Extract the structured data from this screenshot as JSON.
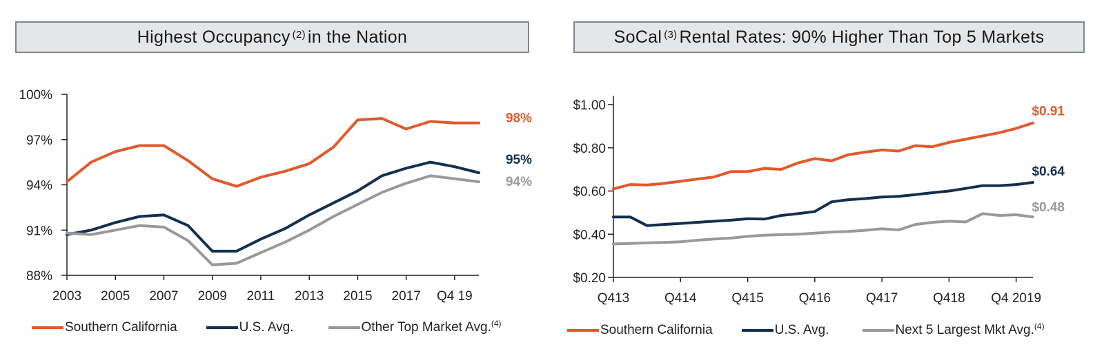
{
  "chart_data": [
    {
      "type": "line",
      "title": "Highest Occupancy",
      "title_note": "2",
      "title_suffix": "in the Nation",
      "x_ticks": [
        "2003",
        "2005",
        "2007",
        "2009",
        "2011",
        "2013",
        "2015",
        "2017",
        "Q4 19"
      ],
      "x": [
        2003,
        2004,
        2005,
        2006,
        2007,
        2008,
        2009,
        2010,
        2011,
        2012,
        2013,
        2014,
        2015,
        2016,
        2017,
        2018,
        2019,
        2020
      ],
      "ylim": [
        88,
        100
      ],
      "y_ticks": [
        "88%",
        "91%",
        "94%",
        "97%",
        "100%"
      ],
      "series": [
        {
          "name": "Southern California",
          "color": "#e05a2b",
          "end_label": "98%",
          "values": [
            94.2,
            95.5,
            96.2,
            96.6,
            96.6,
            95.6,
            94.4,
            93.9,
            94.5,
            94.9,
            95.4,
            96.5,
            98.3,
            98.4,
            97.7,
            98.2,
            98.1,
            98.1
          ]
        },
        {
          "name": "U.S. Avg.",
          "color": "#14304f",
          "end_label": "95%",
          "values": [
            90.7,
            91.0,
            91.5,
            91.9,
            92.0,
            91.3,
            89.6,
            89.6,
            90.4,
            91.1,
            92.0,
            92.8,
            93.6,
            94.6,
            95.1,
            95.5,
            95.2,
            94.8
          ]
        },
        {
          "name": "Other Top Market Avg.",
          "name_note": "4",
          "color": "#999999",
          "end_label": "94%",
          "values": [
            90.8,
            90.7,
            91.0,
            91.3,
            91.2,
            90.3,
            88.7,
            88.8,
            89.5,
            90.2,
            91.0,
            91.9,
            92.7,
            93.5,
            94.1,
            94.6,
            94.4,
            94.2
          ]
        }
      ]
    },
    {
      "type": "line",
      "title": "SoCal",
      "title_note": "3",
      "title_suffix": "Rental Rates: 90% Higher Than Top 5 Markets",
      "x_ticks": [
        "Q413",
        "Q414",
        "Q415",
        "Q416",
        "Q417",
        "Q418",
        "Q4 2019"
      ],
      "x": [
        "Q413",
        "Q114",
        "Q214",
        "Q314",
        "Q414",
        "Q115",
        "Q215",
        "Q315",
        "Q415",
        "Q116",
        "Q216",
        "Q316",
        "Q416",
        "Q117",
        "Q217",
        "Q317",
        "Q417",
        "Q118",
        "Q218",
        "Q318",
        "Q418",
        "Q119",
        "Q219",
        "Q319",
        "Q419",
        "Q120"
      ],
      "ylim": [
        0.2,
        1.0
      ],
      "y_ticks": [
        "$0.20",
        "$0.40",
        "$0.60",
        "$0.80",
        "$1.00"
      ],
      "series": [
        {
          "name": "Southern California",
          "color": "#e05a2b",
          "end_label": "$0.91",
          "values": [
            0.61,
            0.63,
            0.628,
            0.635,
            0.645,
            0.655,
            0.665,
            0.69,
            0.69,
            0.705,
            0.7,
            0.73,
            0.75,
            0.74,
            0.768,
            0.78,
            0.79,
            0.785,
            0.81,
            0.805,
            0.825,
            0.84,
            0.855,
            0.87,
            0.89,
            0.915
          ]
        },
        {
          "name": "U.S. Avg.",
          "color": "#14304f",
          "end_label": "$0.64",
          "values": [
            0.48,
            0.48,
            0.44,
            0.445,
            0.45,
            0.455,
            0.46,
            0.465,
            0.472,
            0.47,
            0.487,
            0.495,
            0.505,
            0.55,
            0.56,
            0.565,
            0.572,
            0.575,
            0.583,
            0.592,
            0.6,
            0.612,
            0.625,
            0.625,
            0.63,
            0.64
          ]
        },
        {
          "name": "Next 5 Largest Mkt Avg.",
          "name_note": "4",
          "color": "#999999",
          "end_label": "$0.48",
          "values": [
            0.355,
            0.357,
            0.36,
            0.362,
            0.365,
            0.372,
            0.378,
            0.382,
            0.39,
            0.395,
            0.398,
            0.4,
            0.405,
            0.41,
            0.413,
            0.418,
            0.425,
            0.42,
            0.445,
            0.455,
            0.46,
            0.457,
            0.495,
            0.487,
            0.49,
            0.48
          ]
        }
      ]
    }
  ]
}
